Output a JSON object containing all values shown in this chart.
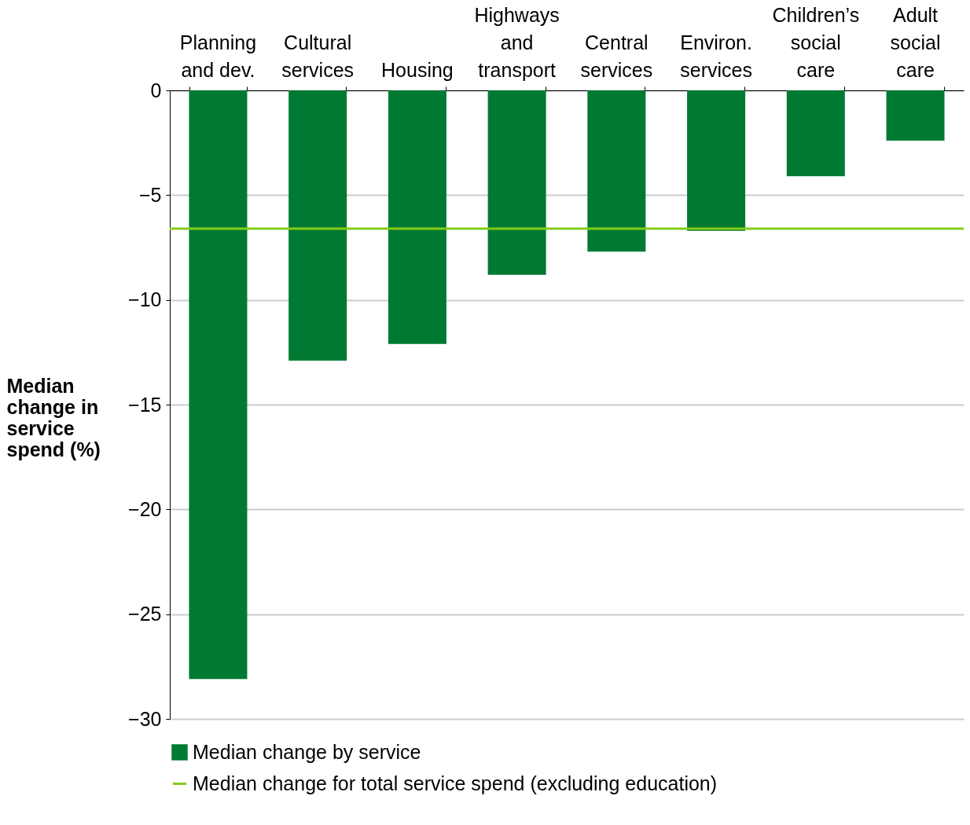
{
  "chart_data": {
    "type": "bar",
    "ylabel": "Median change in service spend (%)",
    "categories": [
      "Planning and dev.",
      "Cultural services",
      "Housing",
      "Highways and transport",
      "Central services",
      "Environ. services",
      "Children’s social care",
      "Adult social care"
    ],
    "series": [
      {
        "name": "Median change by service",
        "color": "#007a33",
        "values": [
          -28.1,
          -12.9,
          -12.1,
          -8.8,
          -7.7,
          -6.7,
          -4.1,
          -2.4
        ]
      }
    ],
    "ylim": [
      -30,
      0
    ],
    "yticks": [
      -30,
      -25,
      -20,
      -15,
      -10,
      -5,
      0
    ],
    "grid": "y",
    "legend": "bottom left",
    "ref_lines": [
      {
        "axis": "y",
        "value": -6.6,
        "label": "Median change for total service spend (excluding education)",
        "color": "#84cc16"
      }
    ]
  }
}
